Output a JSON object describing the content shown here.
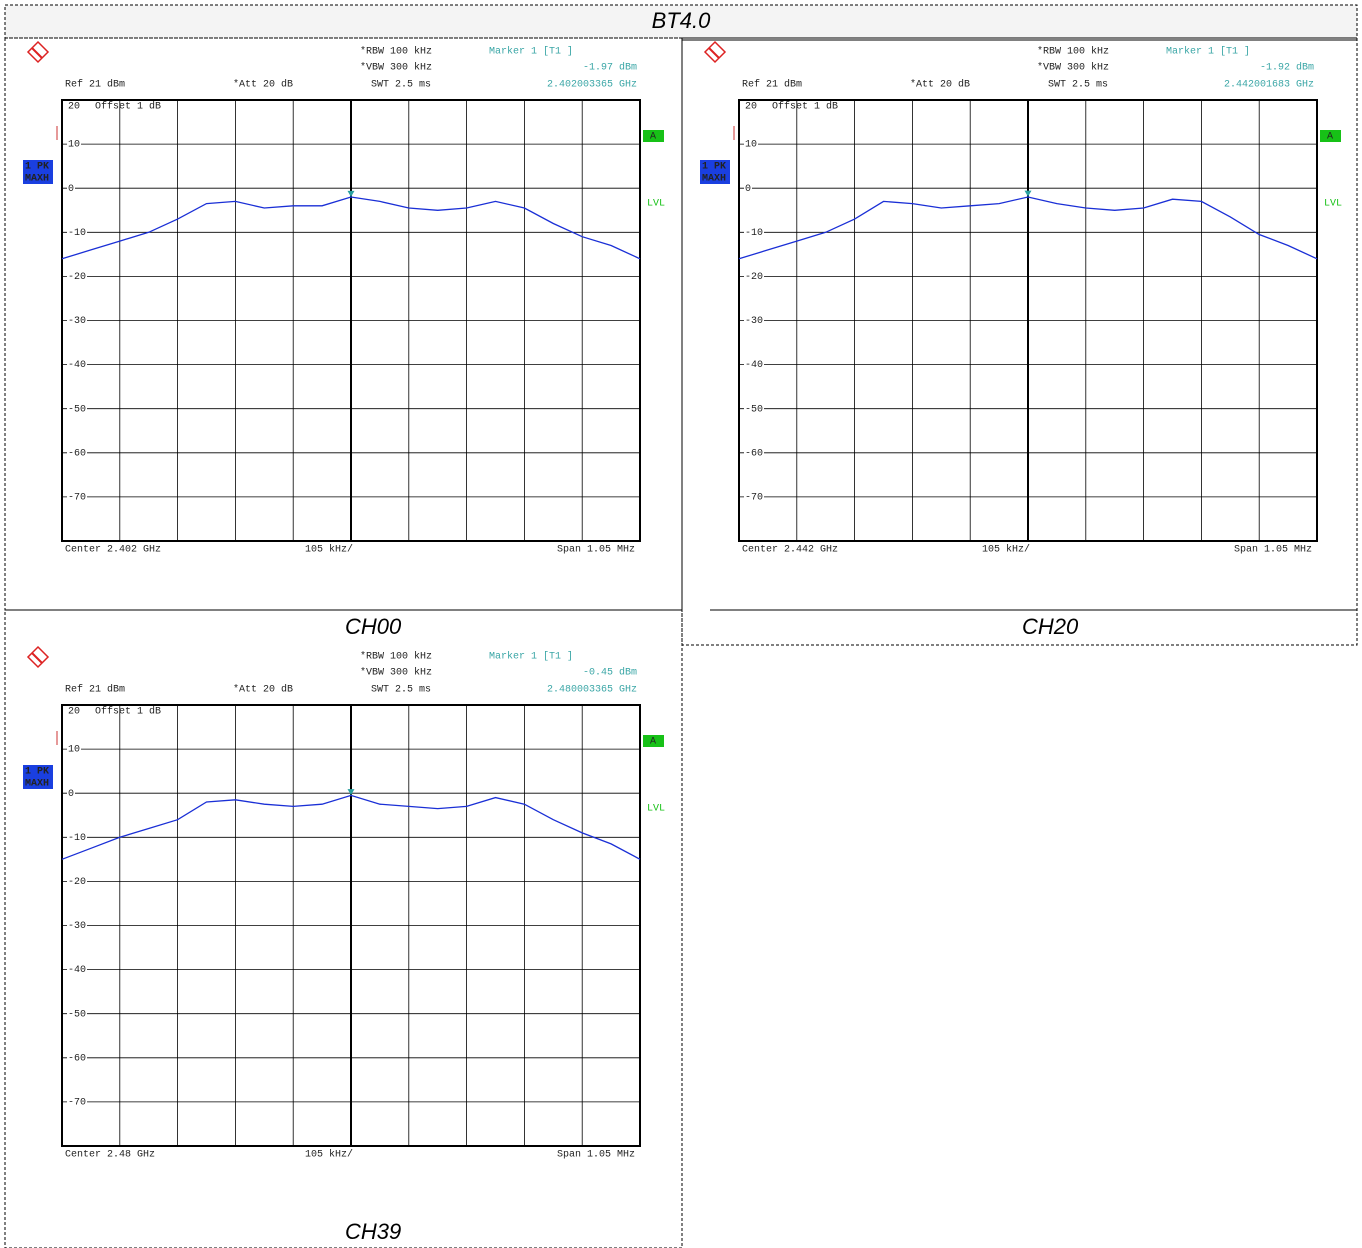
{
  "page_title": "BT4.0",
  "chart_data": [
    {
      "type": "line",
      "title": "CH00",
      "color": "#1a2fd6",
      "rbw": "*RBW 100 kHz",
      "vbw": "*VBW 300 kHz",
      "ref": "Ref 21 dBm",
      "att": "*Att 20 dB",
      "swt": "SWT 2.5 ms",
      "offset": "Offset 1 dB",
      "detector": "1 PK",
      "trace_mode": "MAXH",
      "limit": "A",
      "level": "LVL",
      "center": "Center 2.402 GHz",
      "per_div": "105 kHz/",
      "span": "Span 1.05 MHz",
      "marker": {
        "name": "Marker 1 [T1 ]",
        "value": -1.97,
        "value_label": "-1.97 dBm",
        "freq": "2.402003365 GHz"
      },
      "x": [
        -525,
        -472.5,
        -420,
        -367.5,
        -315,
        -262.5,
        -210,
        -157.5,
        -105,
        -52.5,
        0,
        52.5,
        105,
        157.5,
        210,
        262.5,
        315,
        367.5,
        420,
        472.5,
        525
      ],
      "values": [
        -16,
        -14,
        -12,
        -10,
        -7,
        -3.5,
        -3,
        -4.5,
        -4,
        -4,
        -2,
        -3,
        -4.5,
        -5,
        -4.5,
        -3,
        -4.5,
        -8,
        -11,
        -13,
        -16
      ],
      "xlim": [
        -525,
        525
      ],
      "ylim": [
        -80,
        20
      ],
      "yticks": [
        20,
        10,
        0,
        -10,
        -20,
        -30,
        -40,
        -50,
        -60,
        -70
      ],
      "grid": true
    },
    {
      "type": "line",
      "title": "CH20",
      "color": "#1a2fd6",
      "rbw": "*RBW 100 kHz",
      "vbw": "*VBW 300 kHz",
      "ref": "Ref 21 dBm",
      "att": "*Att 20 dB",
      "swt": "SWT 2.5 ms",
      "offset": "Offset 1 dB",
      "detector": "1 PK",
      "trace_mode": "MAXH",
      "limit": "A",
      "level": "LVL",
      "center": "Center 2.442 GHz",
      "per_div": "105 kHz/",
      "span": "Span 1.05 MHz",
      "marker": {
        "name": "Marker 1 [T1 ]",
        "value": -1.92,
        "value_label": "-1.92 dBm",
        "freq": "2.442001683 GHz"
      },
      "x": [
        -525,
        -472.5,
        -420,
        -367.5,
        -315,
        -262.5,
        -210,
        -157.5,
        -105,
        -52.5,
        0,
        52.5,
        105,
        157.5,
        210,
        262.5,
        315,
        367.5,
        420,
        472.5,
        525
      ],
      "values": [
        -16,
        -14,
        -12,
        -10,
        -7,
        -3,
        -3.5,
        -4.5,
        -4,
        -3.5,
        -2,
        -3.5,
        -4.5,
        -5,
        -4.5,
        -2.5,
        -3,
        -6.5,
        -10.5,
        -13,
        -16
      ],
      "xlim": [
        -525,
        525
      ],
      "ylim": [
        -80,
        20
      ],
      "yticks": [
        20,
        10,
        0,
        -10,
        -20,
        -30,
        -40,
        -50,
        -60,
        -70
      ],
      "grid": true
    },
    {
      "type": "line",
      "title": "CH39",
      "color": "#1a2fd6",
      "rbw": "*RBW 100 kHz",
      "vbw": "*VBW 300 kHz",
      "ref": "Ref 21 dBm",
      "att": "*Att 20 dB",
      "swt": "SWT 2.5 ms",
      "offset": "Offset 1 dB",
      "detector": "1 PK",
      "trace_mode": "MAXH",
      "limit": "A",
      "level": "LVL",
      "center": "Center 2.48 GHz",
      "per_div": "105 kHz/",
      "span": "Span 1.05 MHz",
      "marker": {
        "name": "Marker 1 [T1 ]",
        "value": -0.45,
        "value_label": "-0.45 dBm",
        "freq": "2.480003365 GHz"
      },
      "x": [
        -525,
        -472.5,
        -420,
        -367.5,
        -315,
        -262.5,
        -210,
        -157.5,
        -105,
        -52.5,
        0,
        52.5,
        105,
        157.5,
        210,
        262.5,
        315,
        367.5,
        420,
        472.5,
        525
      ],
      "values": [
        -15,
        -12.5,
        -10,
        -8,
        -6,
        -2,
        -1.5,
        -2.5,
        -3,
        -2.5,
        -0.5,
        -2.5,
        -3,
        -3.5,
        -3,
        -1,
        -2.5,
        -6,
        -9,
        -11.5,
        -15
      ],
      "xlim": [
        -525,
        525
      ],
      "ylim": [
        -80,
        20
      ],
      "yticks": [
        20,
        10,
        0,
        -10,
        -20,
        -30,
        -40,
        -50,
        -60,
        -70
      ],
      "grid": true
    }
  ]
}
